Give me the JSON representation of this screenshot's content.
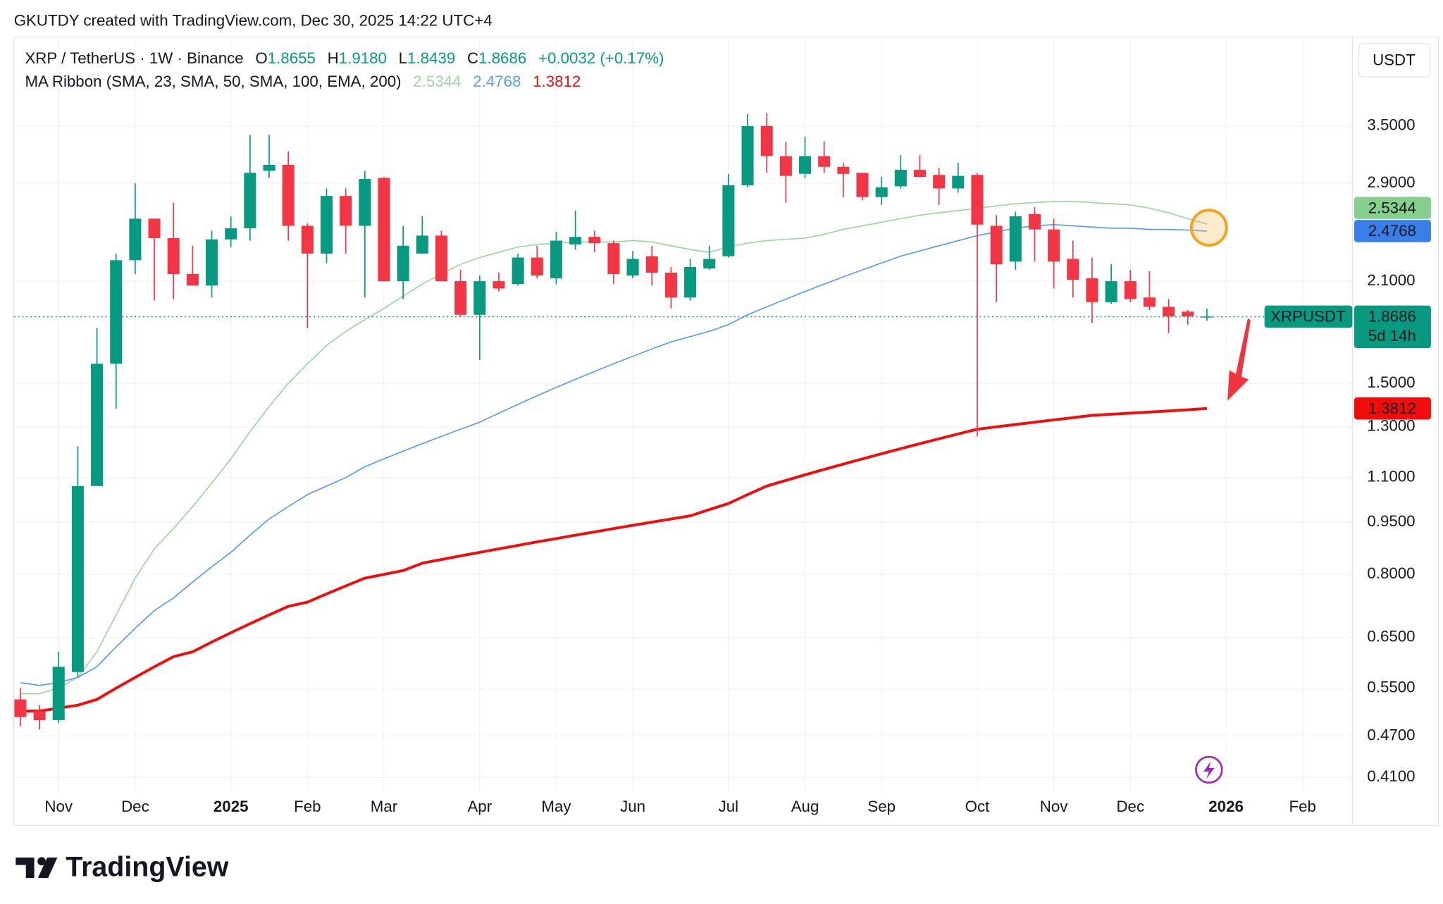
{
  "attribution": "GKUTDY created with TradingView.com, Dec 30, 2025 14:22 UTC+4",
  "brand": "TradingView",
  "chart_data": {
    "type": "candlestick",
    "title": "XRP / TetherUS · 1W · Binance",
    "ohlc_legend": [
      {
        "label": "O",
        "value": "1.8655"
      },
      {
        "label": "H",
        "value": "1.9180"
      },
      {
        "label": "L",
        "value": "1.8439"
      },
      {
        "label": "C",
        "value": "1.8686"
      }
    ],
    "change": "+0.0032 (+0.17%)",
    "indicator": "MA Ribbon (SMA, 23, SMA, 50, SMA, 100, EMA, 200)",
    "currency": "USDT",
    "symbol_tag": "XRPUSDT",
    "countdown": "5d 14h",
    "up_color": "#089981",
    "down_color": "#f23645",
    "candles": {
      "open": [
        0.53,
        0.51,
        0.495,
        0.58,
        1.07,
        1.6,
        2.25,
        2.58,
        2.42,
        2.15,
        2.07,
        2.41,
        2.5,
        3.02,
        3.08,
        2.52,
        2.3,
        2.78,
        2.52,
        2.95,
        2.1,
        2.3,
        2.44,
        2.1,
        1.88,
        2.1,
        2.08,
        2.27,
        2.12,
        2.37,
        2.43,
        2.38,
        2.14,
        2.28,
        2.16,
        1.99,
        2.19,
        2.28,
        2.88,
        3.5,
        3.17,
        2.99,
        3.17,
        3.06,
        3.0,
        2.77,
        2.87,
        3.03,
        2.98,
        2.85,
        2.98,
        2.52,
        2.24,
        2.62,
        2.49,
        2.26,
        2.12,
        1.96,
        2.1,
        1.99,
        1.93,
        1.9,
        1.8655
      ],
      "high": [
        0.55,
        0.52,
        0.62,
        1.22,
        1.8,
        2.3,
        2.9,
        2.58,
        2.72,
        2.36,
        2.48,
        2.6,
        3.4,
        3.4,
        3.22,
        2.54,
        2.85,
        2.85,
        3.02,
        2.96,
        2.52,
        2.6,
        2.48,
        2.18,
        2.14,
        2.16,
        2.3,
        2.36,
        2.47,
        2.65,
        2.48,
        2.4,
        2.32,
        2.36,
        2.2,
        2.26,
        2.36,
        2.99,
        3.64,
        3.65,
        3.32,
        3.38,
        3.33,
        3.1,
        3.0,
        2.96,
        3.18,
        3.18,
        3.05,
        3.1,
        3.0,
        2.61,
        2.64,
        2.68,
        2.58,
        2.4,
        2.27,
        2.22,
        2.18,
        2.17,
        1.98,
        1.91,
        1.918
      ],
      "low": [
        0.485,
        0.48,
        0.49,
        0.57,
        1.07,
        1.38,
        2.15,
        1.97,
        1.98,
        2.07,
        1.99,
        2.35,
        2.4,
        2.95,
        2.4,
        1.8,
        2.23,
        2.3,
        1.99,
        2.1,
        1.98,
        2.3,
        2.1,
        1.87,
        1.62,
        2.03,
        2.07,
        2.12,
        2.08,
        2.33,
        2.31,
        2.08,
        2.12,
        2.07,
        1.92,
        1.97,
        2.18,
        2.27,
        2.86,
        3.0,
        2.72,
        2.95,
        3.0,
        2.77,
        2.74,
        2.7,
        2.85,
        2.96,
        2.7,
        2.81,
        1.26,
        1.96,
        2.18,
        2.24,
        2.05,
        1.99,
        1.83,
        1.95,
        1.96,
        1.91,
        1.77,
        1.82,
        1.8439
      ],
      "close": [
        0.5,
        0.495,
        0.59,
        1.07,
        1.6,
        2.25,
        2.58,
        2.42,
        2.15,
        2.07,
        2.41,
        2.5,
        3.0,
        3.08,
        2.52,
        2.3,
        2.78,
        2.52,
        2.94,
        2.1,
        2.36,
        2.44,
        2.1,
        1.88,
        2.1,
        2.05,
        2.27,
        2.14,
        2.4,
        2.43,
        2.38,
        2.15,
        2.26,
        2.16,
        1.99,
        2.2,
        2.26,
        2.88,
        3.5,
        3.17,
        2.97,
        3.17,
        3.06,
        2.99,
        2.77,
        2.86,
        3.03,
        2.96,
        2.85,
        2.97,
        2.53,
        2.22,
        2.6,
        2.49,
        2.24,
        2.11,
        1.96,
        2.1,
        1.98,
        1.93,
        1.87,
        1.87,
        1.8686
      ]
    },
    "series": [
      {
        "color": "#9ed6a0",
        "width": 1.3,
        "values": [
          0.54,
          0.54,
          0.55,
          0.57,
          0.62,
          0.7,
          0.79,
          0.87,
          0.93,
          1.0,
          1.08,
          1.17,
          1.28,
          1.39,
          1.5,
          1.6,
          1.7,
          1.78,
          1.85,
          1.92,
          2.0,
          2.08,
          2.15,
          2.22,
          2.27,
          2.31,
          2.35,
          2.37,
          2.38,
          2.39,
          2.39,
          2.39,
          2.4,
          2.39,
          2.36,
          2.33,
          2.31,
          2.35,
          2.38,
          2.4,
          2.41,
          2.42,
          2.45,
          2.49,
          2.52,
          2.55,
          2.58,
          2.61,
          2.63,
          2.65,
          2.67,
          2.69,
          2.71,
          2.72,
          2.73,
          2.73,
          2.72,
          2.71,
          2.7,
          2.67,
          2.63,
          2.58,
          2.5344
        ]
      },
      {
        "color": "#5b9cf0",
        "width": 1.3,
        "values": [
          0.56,
          0.555,
          0.56,
          0.57,
          0.59,
          0.63,
          0.67,
          0.71,
          0.74,
          0.78,
          0.82,
          0.86,
          0.91,
          0.96,
          1.0,
          1.04,
          1.07,
          1.1,
          1.14,
          1.17,
          1.2,
          1.23,
          1.26,
          1.29,
          1.32,
          1.36,
          1.4,
          1.44,
          1.48,
          1.52,
          1.56,
          1.6,
          1.64,
          1.68,
          1.72,
          1.75,
          1.78,
          1.82,
          1.88,
          1.93,
          1.98,
          2.03,
          2.08,
          2.13,
          2.18,
          2.23,
          2.28,
          2.32,
          2.36,
          2.4,
          2.44,
          2.47,
          2.5,
          2.52,
          2.53,
          2.52,
          2.51,
          2.5,
          2.5,
          2.49,
          2.49,
          2.485,
          2.4768
        ]
      },
      {
        "color": "#f20d0d",
        "width": 3,
        "values": [
          0.51,
          0.51,
          0.515,
          0.52,
          0.53,
          0.55,
          0.57,
          0.59,
          0.61,
          0.62,
          0.64,
          0.66,
          0.68,
          0.7,
          0.72,
          0.73,
          0.75,
          0.77,
          0.79,
          0.8,
          0.81,
          0.83,
          0.84,
          0.85,
          0.86,
          0.87,
          0.88,
          0.89,
          0.9,
          0.91,
          0.92,
          0.93,
          0.94,
          0.95,
          0.96,
          0.97,
          0.99,
          1.01,
          1.04,
          1.07,
          1.09,
          1.11,
          1.13,
          1.15,
          1.17,
          1.19,
          1.21,
          1.23,
          1.25,
          1.27,
          1.29,
          1.3,
          1.31,
          1.32,
          1.33,
          1.34,
          1.35,
          1.355,
          1.36,
          1.365,
          1.37,
          1.375,
          1.3812
        ]
      }
    ],
    "log_scale": true,
    "grid": true,
    "xlim": [
      -0.34,
      69.6
    ],
    "xticks": [
      {
        "value": 2,
        "label": "Nov"
      },
      {
        "value": 6,
        "label": "Dec"
      },
      {
        "value": 11,
        "label": "2025"
      },
      {
        "value": 15,
        "label": "Feb"
      },
      {
        "value": 19,
        "label": "Mar"
      },
      {
        "value": 24,
        "label": "Apr"
      },
      {
        "value": 28,
        "label": "May"
      },
      {
        "value": 32,
        "label": "Jun"
      },
      {
        "value": 37,
        "label": "Jul"
      },
      {
        "value": 41,
        "label": "Aug"
      },
      {
        "value": 45,
        "label": "Sep"
      },
      {
        "value": 50,
        "label": "Oct"
      },
      {
        "value": 54,
        "label": "Nov"
      },
      {
        "value": 58,
        "label": "Dec"
      },
      {
        "value": 63,
        "label": "2026"
      },
      {
        "value": 67,
        "label": "Feb"
      }
    ],
    "ylim": [
      0.392,
      4.69
    ],
    "yticks": [
      {
        "value": 3.5,
        "label": "3.5000"
      },
      {
        "value": 2.9,
        "label": "2.9000"
      },
      {
        "value": 2.1,
        "label": "2.1000"
      },
      {
        "value": 1.5,
        "label": "1.5000"
      },
      {
        "value": 1.3,
        "label": "1.3000"
      },
      {
        "value": 1.1,
        "label": "1.1000"
      },
      {
        "value": 0.95,
        "label": "0.9500"
      },
      {
        "value": 0.8,
        "label": "0.8000"
      },
      {
        "value": 0.65,
        "label": "0.6500"
      },
      {
        "value": 0.55,
        "label": "0.5500"
      },
      {
        "value": 0.47,
        "label": "0.4700"
      },
      {
        "value": 0.41,
        "label": "0.4100"
      }
    ]
  }
}
